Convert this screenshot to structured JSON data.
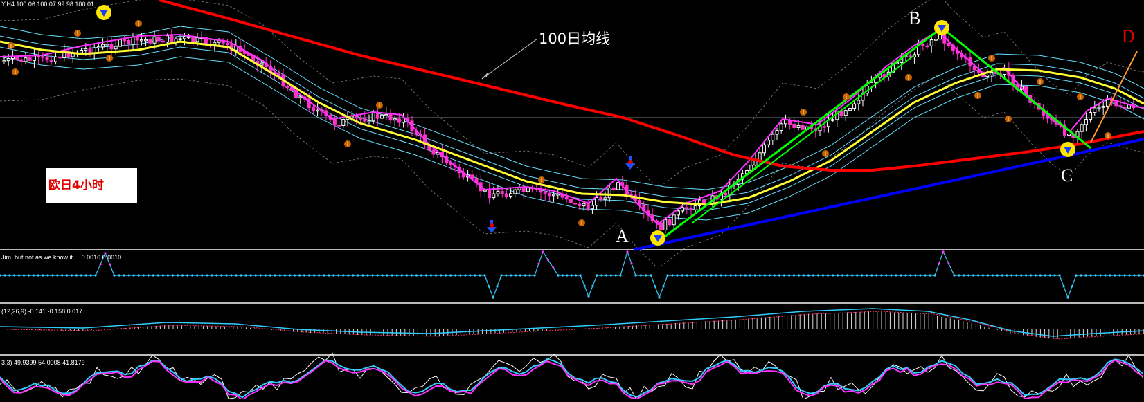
{
  "chart_data": {
    "type": "candlestick",
    "symbol_header": "Y,H4  100.06 100.07 99.98 100.01",
    "label": "欧日4小时",
    "ma_label": "100日均线",
    "points": {
      "A": "A",
      "B": "B",
      "C": "C",
      "D": "D"
    },
    "indicators": [
      {
        "name": "Jim, but not as we know it....",
        "values": "0.0010 0.0010"
      },
      {
        "name": "(12,26,9)",
        "values": "-0.141 -0.158 0.017"
      },
      {
        "name": "3,3)",
        "values": "49.9399 54.0008 41.8179"
      }
    ],
    "colors": {
      "background": "#000000",
      "ma100": "#ff0000",
      "ma_yellow": "#ffff33",
      "ma_magenta": "#ff33ff",
      "envelope": "#66e0ff",
      "trend_blue": "#0000ff",
      "channel_green": "#00ff00",
      "d_orange": "#ff9933",
      "candle_up": "#ffffff",
      "candle_down": "#ff33cc"
    }
  }
}
